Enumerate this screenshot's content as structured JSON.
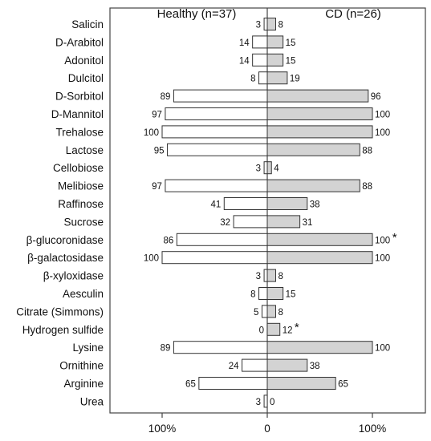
{
  "chart_data": {
    "type": "bar",
    "orientation": "horizontal-diverging",
    "title": "",
    "xlabel": "",
    "ylabel": "",
    "xlim": [
      -100,
      100
    ],
    "grid": false,
    "legend": "none",
    "left_group_label": "Healthy (n=37)",
    "right_group_label": "CD (n=26)",
    "x_ticks": [
      {
        "value": -100,
        "label": "100%"
      },
      {
        "value": 0,
        "label": "0"
      },
      {
        "value": 100,
        "label": "100%"
      }
    ],
    "categories": [
      "Salicin",
      "D-Arabitol",
      "Adonitol",
      "Dulcitol",
      "D-Sorbitol",
      "D-Mannitol",
      "Trehalose",
      "Lactose",
      "Cellobiose",
      "Melibiose",
      "Raffinose",
      "Sucrose",
      "β-glucoronidase",
      "β-galactosidase",
      "β-xyloxidase",
      "Aesculin",
      "Citrate (Simmons)",
      "Hydrogen sulfide",
      "Lysine",
      "Ornithine",
      "Arginine",
      "Urea"
    ],
    "series": [
      {
        "name": "Healthy (n=37)",
        "side": "left",
        "color": "#ffffff",
        "values": [
          3,
          14,
          14,
          8,
          89,
          97,
          100,
          95,
          3,
          97,
          41,
          32,
          86,
          100,
          3,
          8,
          5,
          0,
          89,
          24,
          65,
          3
        ]
      },
      {
        "name": "CD (n=26)",
        "side": "right",
        "color": "#d3d3d3",
        "values": [
          8,
          15,
          15,
          19,
          96,
          100,
          100,
          88,
          4,
          88,
          38,
          31,
          100,
          100,
          8,
          15,
          8,
          12,
          100,
          38,
          65,
          0
        ]
      }
    ],
    "annotations": [
      {
        "category": "β-glucoronidase",
        "side": "right",
        "text": "*"
      },
      {
        "category": "Hydrogen sulfide",
        "side": "right",
        "text": "*"
      }
    ]
  }
}
